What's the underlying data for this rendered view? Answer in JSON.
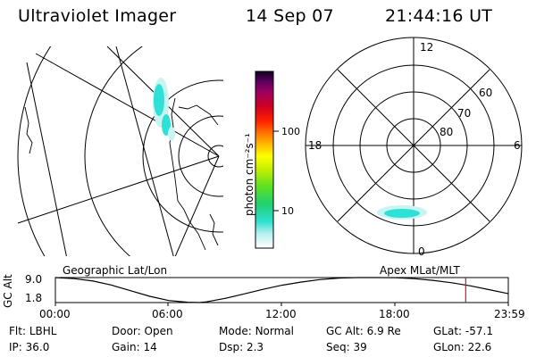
{
  "header": {
    "instrument": "Ultraviolet Imager",
    "date": "14 Sep 07",
    "time": "21:44:16 UT"
  },
  "colorbar": {
    "unit_label": "photon cm⁻²s⁻¹",
    "ticks": [
      "100",
      "10"
    ]
  },
  "polar_plot": {
    "mlt_labels": {
      "top": "12",
      "right": "6",
      "bottom": "0",
      "left": "18"
    },
    "lat_labels": [
      "60",
      "70",
      "80"
    ]
  },
  "timeline": {
    "left_title": "Geographic Lat/Lon",
    "right_title": "Apex MLat/MLT",
    "y_title": "GC Alt",
    "y_ticks": [
      "9.0",
      "1.8"
    ],
    "x_ticks": [
      "00:00",
      "06:00",
      "12:00",
      "18:00",
      "23:59"
    ]
  },
  "chart_data": {
    "type": "line",
    "title": "",
    "xlabel": "",
    "ylabel": "GC Alt",
    "x": [
      0,
      1,
      2,
      3,
      4,
      5,
      6,
      7,
      7.6,
      8,
      9,
      10,
      11,
      12,
      13,
      14,
      15,
      16,
      17,
      18,
      19,
      20,
      21,
      22,
      23,
      23.98
    ],
    "y": [
      9.0,
      8.7,
      8.0,
      6.8,
      5.2,
      3.6,
      2.4,
      1.9,
      1.8,
      2.0,
      3.0,
      4.3,
      5.6,
      6.8,
      7.7,
      8.4,
      8.85,
      9.0,
      9.0,
      8.95,
      8.7,
      8.2,
      7.5,
      6.6,
      5.5,
      4.4
    ],
    "xlim": [
      0,
      24
    ],
    "ylim": [
      1.8,
      9.0
    ],
    "marker_time": 21.74,
    "grid": false
  },
  "info": {
    "row1": [
      {
        "label": "Flt:",
        "value": "LBHL"
      },
      {
        "label": "Door:",
        "value": "Open"
      },
      {
        "label": "Mode:",
        "value": "Normal"
      },
      {
        "label": "GC Alt:",
        "value": "6.9 Re"
      },
      {
        "label": "GLat:",
        "value": "-57.1"
      }
    ],
    "row2": [
      {
        "label": "IP:",
        "value": "36.0"
      },
      {
        "label": "Gain:",
        "value": "14"
      },
      {
        "label": "Dsp:",
        "value": "2.3"
      },
      {
        "label": "Seq:",
        "value": "39"
      },
      {
        "label": "GLon:",
        "value": "22.6"
      }
    ]
  },
  "colors": {
    "aurora": "#2fe0d6",
    "marker": "#e01010"
  }
}
